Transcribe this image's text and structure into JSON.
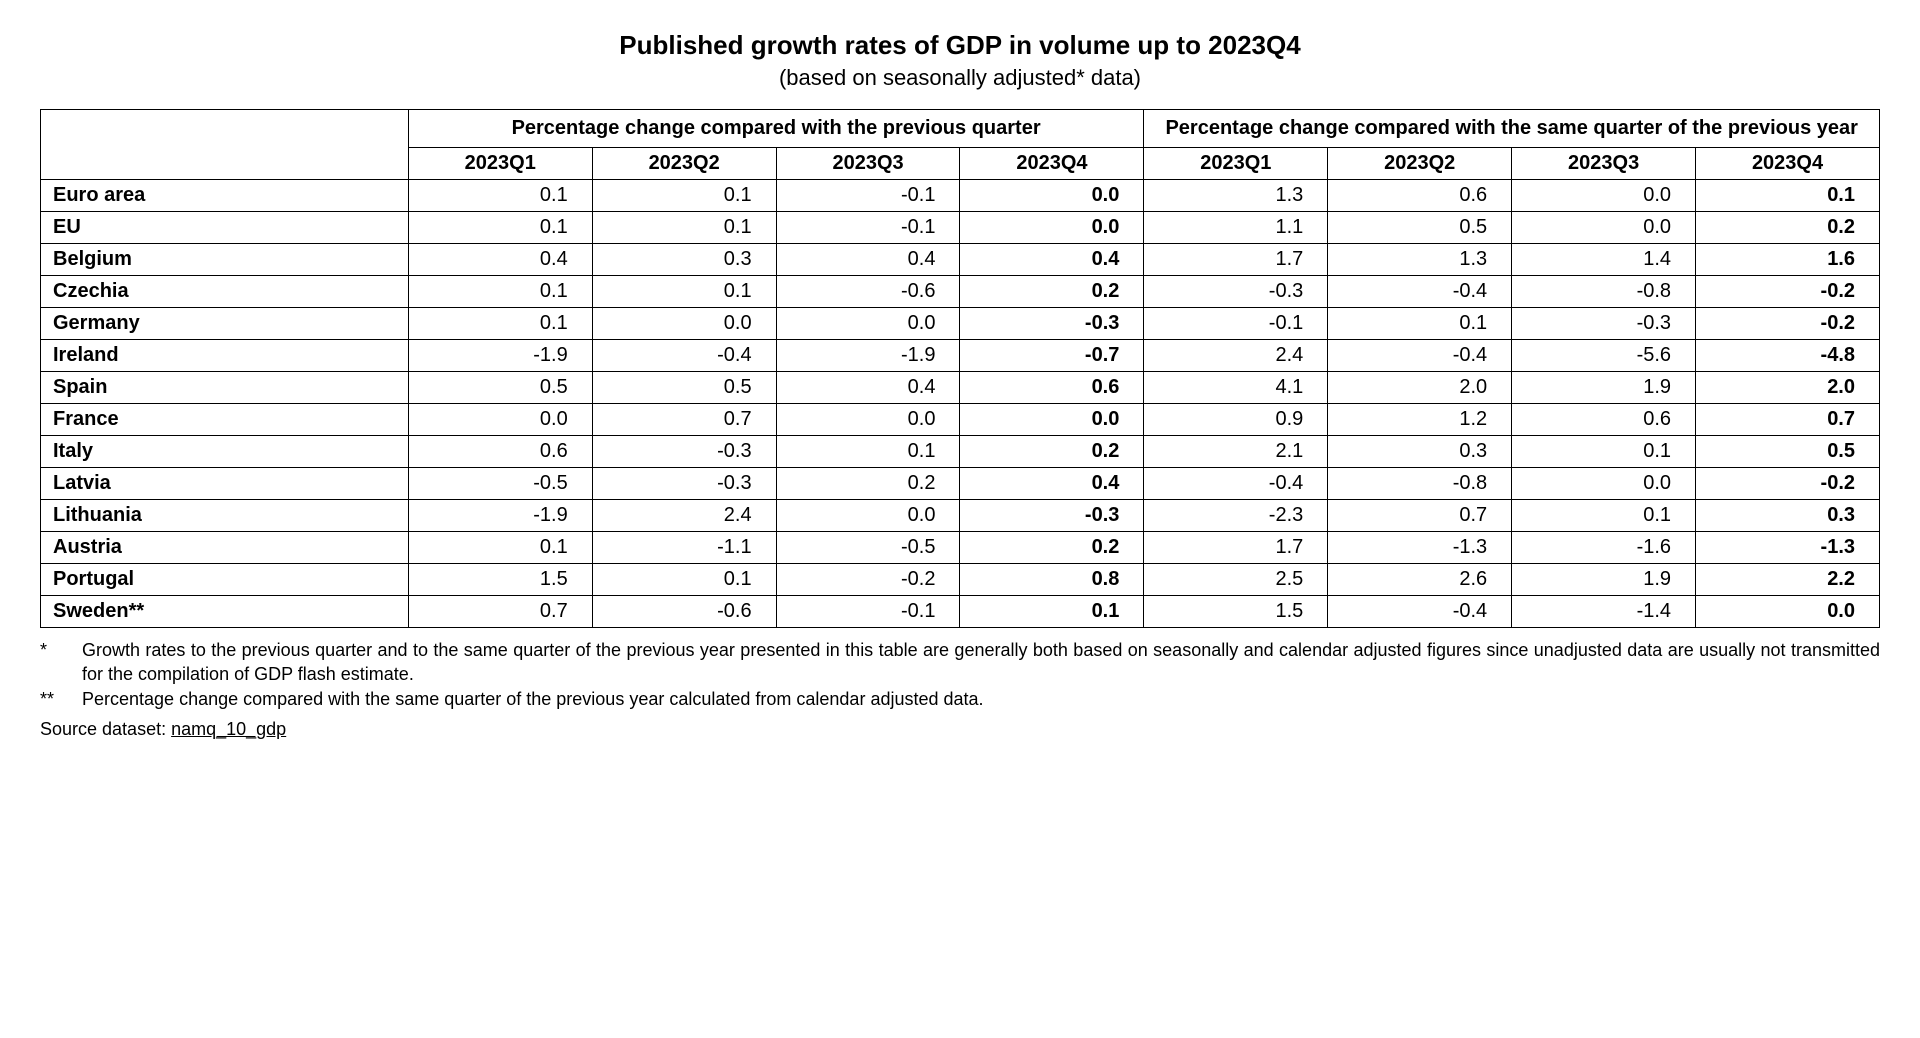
{
  "title": "Published growth rates of GDP in volume up to 2023Q4",
  "subtitle": "(based on seasonally adjusted* data)",
  "table": {
    "type": "table",
    "group_headers": [
      "Percentage change compared with the previous quarter",
      "Percentage change compared with the same quarter of the previous year"
    ],
    "col_headers": [
      "2023Q1",
      "2023Q2",
      "2023Q3",
      "2023Q4",
      "2023Q1",
      "2023Q2",
      "2023Q3",
      "2023Q4"
    ],
    "bold_col_indices": [
      3,
      7
    ],
    "row_label_col_width_pct": 20,
    "data_col_width_pct": 10,
    "border_color": "#000000",
    "background_color": "#ffffff",
    "text_color": "#000000",
    "header_fontsize": 20,
    "cell_fontsize": 20,
    "rows_block1": [
      {
        "label": "Euro area",
        "vals": [
          "0.1",
          "0.1",
          "-0.1",
          "0.0",
          "1.3",
          "0.6",
          "0.0",
          "0.1"
        ]
      },
      {
        "label": "EU",
        "vals": [
          "0.1",
          "0.1",
          "-0.1",
          "0.0",
          "1.1",
          "0.5",
          "0.0",
          "0.2"
        ]
      }
    ],
    "rows_block2": [
      {
        "label": "Belgium",
        "vals": [
          "0.4",
          "0.3",
          "0.4",
          "0.4",
          "1.7",
          "1.3",
          "1.4",
          "1.6"
        ]
      },
      {
        "label": "Czechia",
        "vals": [
          "0.1",
          "0.1",
          "-0.6",
          "0.2",
          "-0.3",
          "-0.4",
          "-0.8",
          "-0.2"
        ]
      },
      {
        "label": "Germany",
        "vals": [
          "0.1",
          "0.0",
          "0.0",
          "-0.3",
          "-0.1",
          "0.1",
          "-0.3",
          "-0.2"
        ]
      },
      {
        "label": "Ireland",
        "vals": [
          "-1.9",
          "-0.4",
          "-1.9",
          "-0.7",
          "2.4",
          "-0.4",
          "-5.6",
          "-4.8"
        ]
      },
      {
        "label": "Spain",
        "vals": [
          "0.5",
          "0.5",
          "0.4",
          "0.6",
          "4.1",
          "2.0",
          "1.9",
          "2.0"
        ]
      },
      {
        "label": "France",
        "vals": [
          "0.0",
          "0.7",
          "0.0",
          "0.0",
          "0.9",
          "1.2",
          "0.6",
          "0.7"
        ]
      },
      {
        "label": "Italy",
        "vals": [
          "0.6",
          "-0.3",
          "0.1",
          "0.2",
          "2.1",
          "0.3",
          "0.1",
          "0.5"
        ]
      },
      {
        "label": "Latvia",
        "vals": [
          "-0.5",
          "-0.3",
          "0.2",
          "0.4",
          "-0.4",
          "-0.8",
          "0.0",
          "-0.2"
        ]
      },
      {
        "label": "Lithuania",
        "vals": [
          "-1.9",
          "2.4",
          "0.0",
          "-0.3",
          "-2.3",
          "0.7",
          "0.1",
          "0.3"
        ]
      },
      {
        "label": "Austria",
        "vals": [
          "0.1",
          "-1.1",
          "-0.5",
          "0.2",
          "1.7",
          "-1.3",
          "-1.6",
          "-1.3"
        ]
      },
      {
        "label": "Portugal",
        "vals": [
          "1.5",
          "0.1",
          "-0.2",
          "0.8",
          "2.5",
          "2.6",
          "1.9",
          "2.2"
        ]
      },
      {
        "label": "Sweden**",
        "vals": [
          "0.7",
          "-0.6",
          "-0.1",
          "0.1",
          "1.5",
          "-0.4",
          "-1.4",
          "0.0"
        ]
      }
    ]
  },
  "footnotes": {
    "fn1_mark": "*",
    "fn1_text": "Growth rates to the previous quarter and to the same quarter of the previous year presented in this table are generally both based on seasonally and calendar adjusted figures since unadjusted data are usually not transmitted for the compilation of GDP flash estimate.",
    "fn2_mark": "**",
    "fn2_text": "Percentage change compared with the same quarter of the previous year calculated from calendar adjusted data."
  },
  "source": {
    "label": "Source dataset: ",
    "dataset": "namq_10_gdp"
  }
}
